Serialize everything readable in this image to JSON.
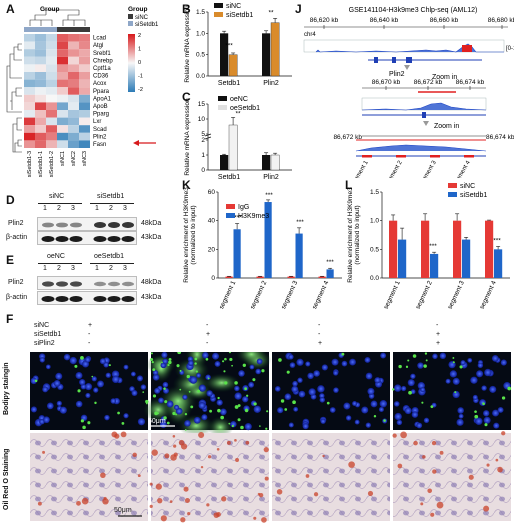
{
  "panels": {
    "A": "A",
    "B": "B",
    "C": "C",
    "D": "D",
    "E": "E",
    "F": "F",
    "J": "J",
    "K": "K",
    "L": "L"
  },
  "heatmap": {
    "group_title": "Group",
    "legend_group_title": "Group",
    "legend_items": [
      {
        "label": "siNC",
        "color": "#3a3a3a"
      },
      {
        "label": "siSetdb1",
        "color": "#8fa7c8"
      }
    ],
    "scale_ticks": [
      "2",
      "1",
      "0",
      "-1",
      "-2"
    ],
    "genes": [
      "Lcad",
      "Atgl",
      "Srebf1",
      "Chrebp",
      "Cptf1a",
      "CD36",
      "Acox",
      "Ppara",
      "ApoA1",
      "ApoB",
      "Pparg",
      "Lxr",
      "Scad",
      "Plin2",
      "Fasn"
    ],
    "samples": [
      "siSetdb1-3",
      "siSetdb1-1",
      "siSetdb1-2",
      "siNC1",
      "siNC2",
      "siNC3"
    ],
    "values": [
      [
        -0.6,
        -0.9,
        -0.5,
        1.4,
        1.2,
        1.1
      ],
      [
        -0.2,
        -0.8,
        -0.4,
        1.6,
        0.6,
        1.0
      ],
      [
        -0.7,
        -0.9,
        -0.3,
        1.3,
        0.9,
        0.7
      ],
      [
        -0.4,
        -0.5,
        -0.2,
        1.8,
        0.3,
        0.8
      ],
      [
        -0.1,
        0.1,
        -0.3,
        0.9,
        0.7,
        0.4
      ],
      [
        -0.6,
        -0.9,
        -0.4,
        0.7,
        1.3,
        0.8
      ],
      [
        -1.1,
        -1.0,
        -0.6,
        1.2,
        1.1,
        0.6
      ],
      [
        -0.3,
        -0.1,
        -0.2,
        0.4,
        1.4,
        0.7
      ],
      [
        0.4,
        0.2,
        0.0,
        -0.1,
        -0.3,
        -1.2
      ],
      [
        0.3,
        1.6,
        0.9,
        -1.3,
        -0.2,
        -1.6
      ],
      [
        -0.2,
        0.5,
        1.2,
        -0.3,
        -0.8,
        -0.7
      ],
      [
        1.7,
        0.7,
        -0.3,
        -1.2,
        -1.0,
        0.1
      ],
      [
        0.8,
        0.4,
        1.4,
        0.2,
        -0.6,
        -1.6
      ],
      [
        1.9,
        1.4,
        1.1,
        -1.7,
        -1.2,
        -0.6
      ],
      [
        0.9,
        1.3,
        0.6,
        -0.4,
        -1.4,
        -1.8
      ]
    ],
    "colors": {
      "high": "#d7191c",
      "mid": "#f7f7f7",
      "low": "#2c7bb6"
    },
    "highlighted_gene": "Plin2"
  },
  "panelB": {
    "legend": [
      "siNC",
      "siSetdb1"
    ],
    "ylabel": "Relative mRNA expression",
    "yticks": [
      "0.0",
      "0.5",
      "1.0",
      "1.5"
    ],
    "categories": [
      "Setdb1",
      "Plin2"
    ],
    "sig": [
      "***",
      "**"
    ]
  },
  "panelC": {
    "legend": [
      "oeNC",
      "oeSetdb1"
    ],
    "ylabel": "Relative mRNA expression",
    "yticks": [
      "0",
      "1",
      "2",
      "5",
      "10",
      "15"
    ],
    "categories": [
      "Setdb1",
      "Plin2"
    ],
    "sig": [
      "**"
    ]
  },
  "panelD": {
    "groups": [
      "siNC",
      "siSetdb1"
    ],
    "lanes": [
      "1",
      "2",
      "3",
      "1",
      "2",
      "3"
    ],
    "rows": [
      {
        "name": "Plin2",
        "kda": "48kDa"
      },
      {
        "name": "β-actin",
        "kda": "43kDa"
      }
    ]
  },
  "panelE": {
    "groups": [
      "oeNC",
      "oeSetdb1"
    ],
    "lanes": [
      "1",
      "2",
      "3",
      "1",
      "2",
      "3"
    ],
    "rows": [
      {
        "name": "Plin2",
        "kda": "48kDa"
      },
      {
        "name": "β-actin",
        "kda": "43kDa"
      }
    ]
  },
  "panelJ": {
    "title": "GSE141104-H3k9me3 Chlp-seq (AML12)",
    "chrom": "chr4",
    "track_range": "[0-10]",
    "gene": "Plin2",
    "ticks_top": [
      "86,620 kb",
      "86,640 kb",
      "86,660 kb",
      "86,680 kb"
    ],
    "ticks_mid": [
      "86,670 kb",
      "86,672 kb",
      "86,674 kb"
    ],
    "ticks_bot": [
      "86,672 kb",
      "86,674 kb"
    ],
    "zoom_label": "Zoom in",
    "segments": [
      "segment 1",
      "segment 2",
      "segment 3",
      "segment 4"
    ]
  },
  "panelK": {
    "legend": [
      "IgG",
      "H3K9me3"
    ],
    "ylabel": "Relative enrichment of H3K9me3\n(normalized to input)",
    "yticks": [
      "0",
      "20",
      "40",
      "60"
    ],
    "categories": [
      "segment 1",
      "segment 2",
      "segment 3",
      "segment 4"
    ],
    "sig": [
      "***",
      "***",
      "***",
      "***"
    ]
  },
  "panelL": {
    "legend": [
      "siNC",
      "siSetdb1"
    ],
    "ylabel": "Relative enrichment of H3K9me3\n(normalized to input)",
    "yticks": [
      "0.0",
      "0.5",
      "1.0",
      "1.5"
    ],
    "categories": [
      "segment 1",
      "segment 2",
      "segment 3",
      "segment 4"
    ],
    "sig": [
      "***",
      "***"
    ]
  },
  "panelF": {
    "conditions": [
      "siNC",
      "siSetdb1",
      "siPlin2"
    ],
    "matrix": [
      [
        "+",
        "-",
        "-",
        "-"
      ],
      [
        "-",
        "+",
        "-",
        "+"
      ],
      [
        "-",
        "-",
        "+",
        "+"
      ]
    ],
    "row_labels": [
      "Bodipy staingin",
      "Oil Red O Staining"
    ],
    "scale_bar": "50μm"
  },
  "chart_data": [
    {
      "type": "bar",
      "categories": [
        "Setdb1",
        "Plin2"
      ],
      "series": [
        {
          "name": "siNC",
          "values": [
            1.0,
            1.0
          ],
          "errors": [
            0.05,
            0.06
          ]
        },
        {
          "name": "siSetdb1",
          "values": [
            0.5,
            1.25
          ],
          "errors": [
            0.04,
            0.1
          ]
        }
      ],
      "ylabel": "Relative mRNA expression",
      "ylim": [
        0,
        1.5
      ]
    },
    {
      "type": "bar",
      "categories": [
        "Setdb1",
        "Plin2"
      ],
      "series": [
        {
          "name": "oeNC",
          "values": [
            1.0,
            1.0
          ],
          "errors": [
            0.05,
            0.15
          ]
        },
        {
          "name": "oeSetdb1",
          "values": [
            8.0,
            1.0
          ],
          "errors": [
            2.5,
            0.12
          ]
        }
      ],
      "ylabel": "Relative mRNA expression",
      "ylim": [
        0,
        15
      ]
    },
    {
      "type": "bar",
      "categories": [
        "segment 1",
        "segment 2",
        "segment 3",
        "segment 4"
      ],
      "series": [
        {
          "name": "IgG",
          "values": [
            1.0,
            1.0,
            1.0,
            1.0
          ],
          "errors": [
            0.2,
            0.2,
            0.2,
            0.2
          ]
        },
        {
          "name": "H3K9me3",
          "values": [
            34,
            53,
            31,
            6
          ],
          "errors": [
            4,
            1.5,
            4,
            0.8
          ]
        }
      ],
      "ylabel": "Relative enrichment of H3K9me3 (normalized to input)",
      "ylim": [
        0,
        60
      ]
    },
    {
      "type": "bar",
      "categories": [
        "segment 1",
        "segment 2",
        "segment 3",
        "segment 4"
      ],
      "series": [
        {
          "name": "siNC",
          "values": [
            1.0,
            1.0,
            1.0,
            1.0
          ],
          "errors": [
            0.1,
            0.12,
            0.12,
            0.01
          ]
        },
        {
          "name": "siSetdb1",
          "values": [
            0.67,
            0.42,
            0.67,
            0.5
          ],
          "errors": [
            0.2,
            0.03,
            0.04,
            0.05
          ]
        }
      ],
      "ylabel": "Relative enrichment of H3K9me3 (normalized to input)",
      "ylim": [
        0,
        1.5
      ]
    }
  ]
}
